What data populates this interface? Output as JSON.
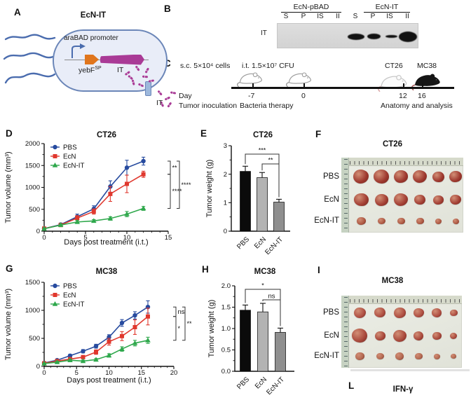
{
  "panel_labels": {
    "a": "A",
    "b": "B",
    "c": "C",
    "d": "D",
    "e": "E",
    "f": "F",
    "g": "G",
    "h": "H",
    "i": "I",
    "l": "L"
  },
  "panel_a": {
    "title": "EcN-IT",
    "promoter": "araBAD promoter",
    "gene1": "yebF",
    "gene1_sup": "SP",
    "gene2": "IT",
    "secreted": "IT"
  },
  "panel_b": {
    "groups": [
      "EcN-pBAD",
      "EcN-IT"
    ],
    "lanes": [
      "S",
      "P",
      "IS",
      "II"
    ],
    "row_label": "IT",
    "bands": [
      {
        "lane": 0,
        "w": 24,
        "h": 9
      },
      {
        "lane": 1,
        "w": 19,
        "h": 8
      },
      {
        "lane": 2,
        "w": 17,
        "h": 4.5
      },
      {
        "lane": 3,
        "w": 26,
        "h": 15
      }
    ]
  },
  "panel_c": {
    "inoculation": "s.c. 5×10⁴ cells",
    "therapy": "i.t. 1.5×10⁷ CFU",
    "model1": "CT26",
    "model2": "MC38",
    "day": "Day",
    "day_ticks": [
      "-7",
      "0",
      "12",
      "16"
    ],
    "caption1": "Tumor inoculation",
    "caption2": "Bacteria therapy",
    "caption3": "Anatomy and analysis"
  },
  "panel_f": {
    "title": "CT26",
    "rows": [
      {
        "label": "PBS",
        "tint": "#9e382e",
        "sizes": [
          22,
          22,
          20,
          20,
          17,
          18
        ]
      },
      {
        "label": "EcN",
        "tint": "#a33f34",
        "sizes": [
          21,
          19,
          20,
          16,
          15,
          16
        ]
      },
      {
        "label": "EcN-IT",
        "tint": "#ae5a44",
        "sizes": [
          13,
          11,
          11,
          11,
          9,
          9
        ]
      }
    ]
  },
  "panel_i": {
    "title": "MC38",
    "rows": [
      {
        "label": "PBS",
        "tint": "#b05043",
        "sizes": [
          17,
          16,
          17,
          15,
          14,
          11
        ]
      },
      {
        "label": "EcN",
        "tint": "#aa4a3d",
        "sizes": [
          22,
          15,
          19,
          14,
          13,
          10
        ]
      },
      {
        "label": "EcN-IT",
        "tint": "#b46a52",
        "sizes": [
          13,
          11,
          12,
          11,
          9,
          8
        ]
      }
    ]
  },
  "panel_l": {
    "title": "IFN-γ"
  },
  "chart_data": [
    {
      "id": "chart-d",
      "panel": "D",
      "type": "line",
      "title": "CT26",
      "xlabel": "Days post treatment (i.t.)",
      "ylabel": "Tumor volume (mm³)",
      "x": [
        0,
        2,
        4,
        6,
        8,
        10,
        12
      ],
      "xlim": [
        0,
        15
      ],
      "ylim": [
        0,
        2000
      ],
      "xticks": [
        0,
        5,
        10,
        15
      ],
      "yticks": [
        0,
        500,
        1000,
        1500,
        2000
      ],
      "ytick_labels": [
        "0",
        "500",
        "1000",
        "1500",
        "2000"
      ],
      "series": [
        {
          "name": "PBS",
          "color": "#274b9f",
          "marker": "circle",
          "values": [
            60,
            150,
            330,
            510,
            1020,
            1450,
            1600
          ],
          "errors": [
            30,
            35,
            60,
            70,
            130,
            170,
            90
          ]
        },
        {
          "name": "EcN",
          "color": "#e0382e",
          "marker": "square",
          "values": [
            60,
            140,
            300,
            450,
            850,
            1080,
            1300
          ],
          "errors": [
            25,
            35,
            55,
            60,
            170,
            200,
            70
          ]
        },
        {
          "name": "EcN-IT",
          "color": "#2fa84c",
          "marker": "triangle",
          "values": [
            55,
            140,
            210,
            235,
            290,
            390,
            520
          ],
          "errors": [
            20,
            25,
            35,
            30,
            40,
            60,
            45
          ]
        }
      ],
      "significance": [
        {
          "a": 0,
          "b": 1,
          "label": "**",
          "tier": 0
        },
        {
          "a": 1,
          "b": 2,
          "label": "****",
          "tier": 0
        },
        {
          "a": 0,
          "b": 2,
          "label": "****",
          "tier": 1
        }
      ]
    },
    {
      "id": "chart-e",
      "panel": "E",
      "type": "bar",
      "title": "CT26",
      "ylabel": "Tumor weight (g)",
      "categories": [
        "PBS",
        "EcN",
        "EcN-IT"
      ],
      "values": [
        2.1,
        1.88,
        1.02
      ],
      "errors": [
        0.18,
        0.18,
        0.1
      ],
      "colors": [
        "#0b0b0b",
        "#b3b3b3",
        "#8f8f8f"
      ],
      "ylim": [
        0,
        3
      ],
      "yticks": [
        0,
        1,
        2,
        3
      ],
      "ytick_labels": [
        "0",
        "1",
        "2",
        "3"
      ],
      "significance": [
        {
          "a": 0,
          "b": 2,
          "label": "***"
        },
        {
          "a": 1,
          "b": 2,
          "label": "**"
        }
      ]
    },
    {
      "id": "chart-g",
      "panel": "G",
      "type": "line",
      "title": "MC38",
      "xlabel": "Days post treatment (i.t.)",
      "ylabel": "Tumor volume (mm³)",
      "x": [
        0,
        2,
        4,
        6,
        8,
        10,
        12,
        14,
        16
      ],
      "xlim": [
        0,
        20
      ],
      "ylim": [
        0,
        1500
      ],
      "xticks": [
        0,
        5,
        10,
        15,
        20
      ],
      "yticks": [
        0,
        500,
        1000,
        1500
      ],
      "ytick_labels": [
        "0",
        "500",
        "1000",
        "1500"
      ],
      "series": [
        {
          "name": "PBS",
          "color": "#274b9f",
          "marker": "circle",
          "values": [
            60,
            110,
            190,
            270,
            360,
            520,
            775,
            910,
            1060
          ],
          "errors": [
            15,
            20,
            25,
            30,
            35,
            45,
            60,
            65,
            110
          ]
        },
        {
          "name": "EcN",
          "color": "#e0382e",
          "marker": "square",
          "values": [
            55,
            95,
            130,
            165,
            255,
            440,
            540,
            700,
            890
          ],
          "errors": [
            15,
            20,
            25,
            30,
            40,
            60,
            80,
            130,
            150
          ]
        },
        {
          "name": "EcN-IT",
          "color": "#2fa84c",
          "marker": "triangle",
          "values": [
            50,
            75,
            110,
            95,
            120,
            195,
            310,
            415,
            465
          ],
          "errors": [
            10,
            15,
            20,
            15,
            20,
            30,
            40,
            50,
            55
          ]
        }
      ],
      "significance": [
        {
          "a": 0,
          "b": 1,
          "label": "ns",
          "tier": 0
        },
        {
          "a": 1,
          "b": 2,
          "label": "*",
          "tier": 0
        },
        {
          "a": 0,
          "b": 2,
          "label": "**",
          "tier": 1
        }
      ]
    },
    {
      "id": "chart-h",
      "panel": "H",
      "type": "bar",
      "title": "MC38",
      "ylabel": "Tumor weight (g)",
      "categories": [
        "PBS",
        "EcN",
        "EcN-IT"
      ],
      "values": [
        1.43,
        1.39,
        0.91
      ],
      "errors": [
        0.12,
        0.2,
        0.1
      ],
      "colors": [
        "#0b0b0b",
        "#b3b3b3",
        "#8f8f8f"
      ],
      "ylim": [
        0,
        2
      ],
      "yticks": [
        0,
        0.5,
        1,
        1.5,
        2
      ],
      "ytick_labels": [
        "0.0",
        "0.5",
        "1.0",
        "1.5",
        "2.0"
      ],
      "significance": [
        {
          "a": 0,
          "b": 2,
          "label": "*"
        },
        {
          "a": 1,
          "b": 2,
          "label": "ns"
        }
      ]
    }
  ]
}
